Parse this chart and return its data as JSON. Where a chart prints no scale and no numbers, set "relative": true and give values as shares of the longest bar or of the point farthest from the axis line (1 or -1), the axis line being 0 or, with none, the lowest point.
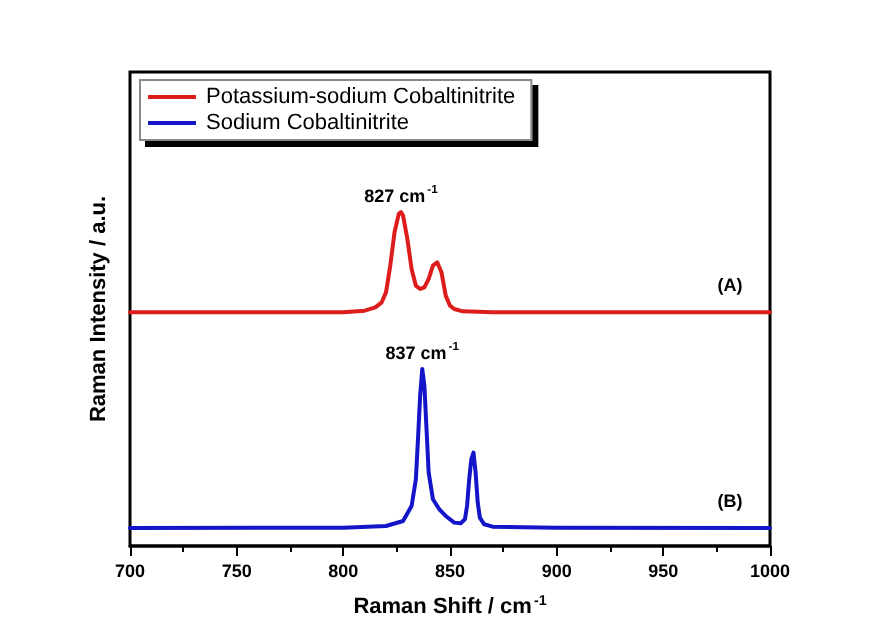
{
  "chart_data": {
    "type": "line",
    "relative": true,
    "xlabel": "Raman Shift / cm$^{-1}$",
    "ylabel": "Raman Intensity / a.u.",
    "xlim": [
      700,
      1000
    ],
    "xticks": [
      700,
      750,
      800,
      850,
      900,
      950,
      1000
    ],
    "grid": false,
    "legend": "top left",
    "marker": "none",
    "line_style": "solid",
    "series": [
      {
        "name": "Potassium-sodium Cobaltinitrite",
        "color": "#dd1c1c",
        "x": [
          700,
          800,
          810,
          815,
          818,
          820,
          822,
          824,
          826,
          827,
          828,
          830,
          832,
          834,
          836,
          838,
          840,
          842,
          844,
          846,
          848,
          850,
          852,
          856,
          870,
          1000
        ],
        "values": [
          0.7,
          0.7,
          0.705,
          0.715,
          0.73,
          0.76,
          0.84,
          0.94,
          0.995,
          1.0,
          0.99,
          0.92,
          0.83,
          0.78,
          0.77,
          0.775,
          0.8,
          0.84,
          0.85,
          0.82,
          0.75,
          0.72,
          0.71,
          0.703,
          0.7,
          0.7
        ]
      },
      {
        "name": "Sodium Cobaltinitrite",
        "color": "#1414c8",
        "x": [
          700,
          800,
          820,
          828,
          832,
          834,
          835,
          836,
          837,
          838,
          839,
          840,
          842,
          845,
          848,
          852,
          855,
          857,
          858,
          859,
          860,
          861,
          862,
          863,
          864,
          866,
          870,
          900,
          1000
        ],
        "values": [
          0.054,
          0.055,
          0.06,
          0.075,
          0.12,
          0.2,
          0.32,
          0.45,
          0.53,
          0.48,
          0.35,
          0.22,
          0.14,
          0.11,
          0.09,
          0.07,
          0.068,
          0.08,
          0.12,
          0.2,
          0.26,
          0.28,
          0.22,
          0.13,
          0.085,
          0.065,
          0.058,
          0.055,
          0.054
        ]
      }
    ],
    "annotations": [
      {
        "text": "827 cm$^{-1}$",
        "x": 827,
        "y": 1.0
      },
      {
        "text": "837 cm$^{-1}$",
        "x": 837,
        "y": 0.53
      },
      "(A)",
      "(B)"
    ]
  }
}
